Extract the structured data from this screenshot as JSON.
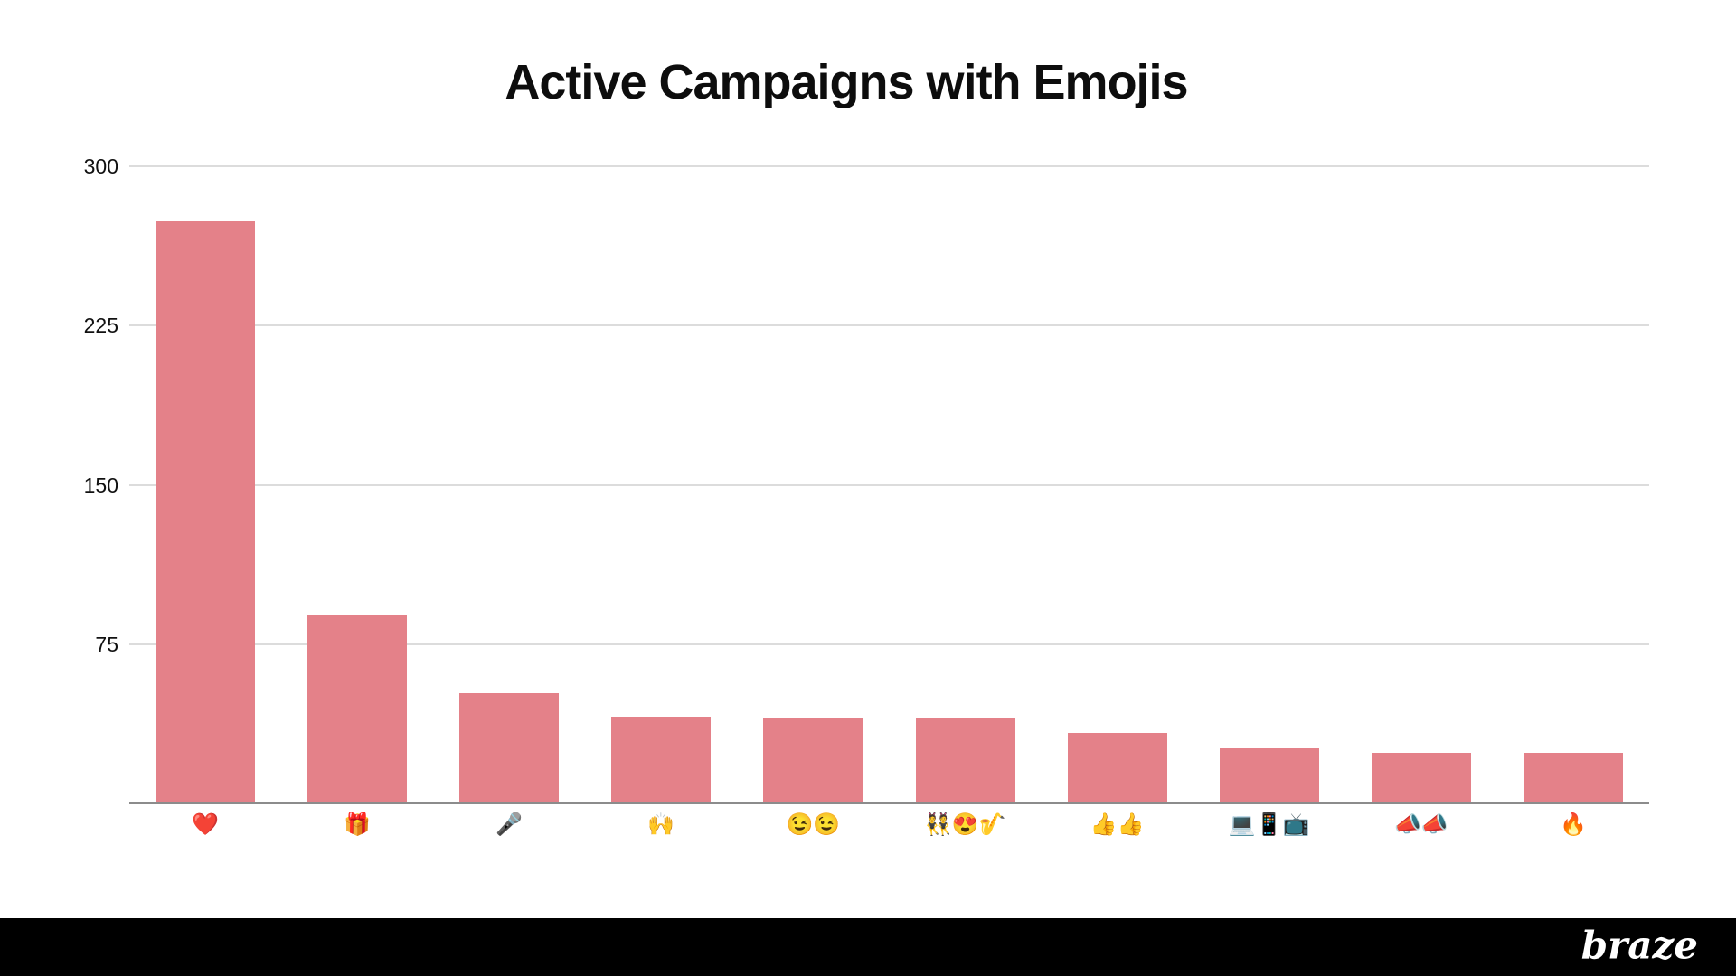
{
  "chart_data": {
    "type": "bar",
    "title": "Active Campaigns with Emojis",
    "categories": [
      "❤️",
      "🎁",
      "🎤",
      "🙌",
      "😉😉",
      "👯😍🎷",
      "👍👍",
      "💻📱📺",
      "📣📣",
      "🔥"
    ],
    "values": [
      274,
      89,
      52,
      41,
      40,
      40,
      33,
      26,
      24,
      24
    ],
    "xlabel": "",
    "ylabel": "",
    "yticks": [
      75,
      150,
      225,
      300
    ],
    "ylim": [
      0,
      300
    ],
    "grid": true,
    "legend": "none",
    "bar_color": "#e48189",
    "gridline_color": "#dcdcdc",
    "axis_line_color": "#8c8c8c",
    "tick_label_color": "#111111",
    "title_color": "#0d0d0d",
    "background": "#ffffff"
  },
  "footer": {
    "brand": "braze",
    "background": "#000000",
    "text_color": "#ffffff"
  }
}
